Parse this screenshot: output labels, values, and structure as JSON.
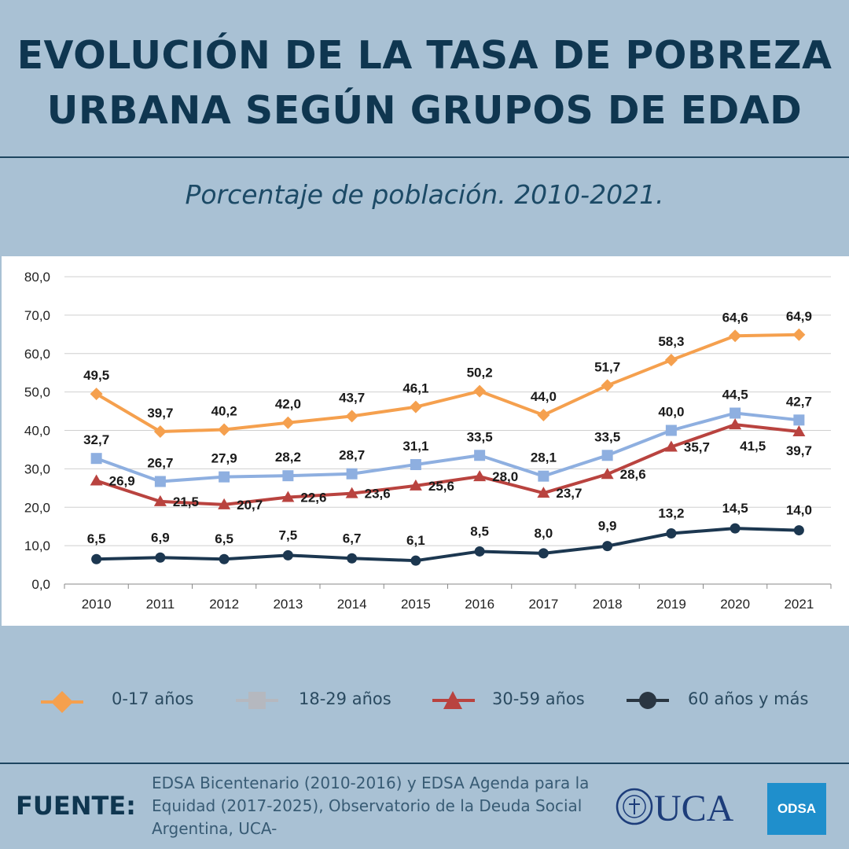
{
  "header": {
    "title_line1": "EVOLUCIÓN DE LA TASA DE POBREZA",
    "title_line2": "URBANA SEGÚN GRUPOS DE EDAD",
    "subtitle": "Porcentaje de población. 2010-2021."
  },
  "chart_data": {
    "type": "line",
    "x": [
      "2010",
      "2011",
      "2012",
      "2013",
      "2014",
      "2015",
      "2016",
      "2017",
      "2018",
      "2019",
      "2020",
      "2021"
    ],
    "ylim": [
      0,
      80
    ],
    "yticks": [
      "0,0",
      "10,0",
      "20,0",
      "30,0",
      "40,0",
      "50,0",
      "60,0",
      "70,0",
      "80,0"
    ],
    "grid": true,
    "legend_position": "bottom",
    "series": [
      {
        "name": "0-17 años",
        "color": "#f5a04e",
        "marker": "diamond",
        "values": [
          49.5,
          39.7,
          40.2,
          42.0,
          43.7,
          46.1,
          50.2,
          44.0,
          51.7,
          58.3,
          64.6,
          64.9
        ],
        "labels": [
          "49,5",
          "39,7",
          "40,2",
          "42,0",
          "43,7",
          "46,1",
          "50,2",
          "44,0",
          "51,7",
          "58,3",
          "64,6",
          "64,9"
        ]
      },
      {
        "name": "18-29  años",
        "color": "#8eafe0",
        "marker": "square",
        "values": [
          32.7,
          26.7,
          27.9,
          28.2,
          28.7,
          31.1,
          33.5,
          28.1,
          33.5,
          40.0,
          44.5,
          42.7
        ],
        "labels": [
          "32,7",
          "26,7",
          "27,9",
          "28,2",
          "28,7",
          "31,1",
          "33,5",
          "28,1",
          "33,5",
          "40,0",
          "44,5",
          "42,7"
        ]
      },
      {
        "name": "30-59  años",
        "color": "#b9433f",
        "marker": "triangle",
        "values": [
          26.9,
          21.5,
          20.7,
          22.6,
          23.6,
          25.6,
          28.0,
          23.7,
          28.6,
          35.7,
          41.5,
          39.7
        ],
        "labels": [
          "26,9",
          "21,5",
          "20,7",
          "22,6",
          "23,6",
          "25,6",
          "28,0",
          "23,7",
          "28,6",
          "35,7",
          "41,5",
          "39,7"
        ]
      },
      {
        "name": "60 años y más",
        "color": "#1c3750",
        "marker": "circle",
        "values": [
          6.5,
          6.9,
          6.5,
          7.5,
          6.7,
          6.1,
          8.5,
          8.0,
          9.9,
          13.2,
          14.5,
          14.0
        ],
        "labels": [
          "6,5",
          "6,9",
          "6,5",
          "7,5",
          "6,7",
          "6,1",
          "8,5",
          "8,0",
          "9,9",
          "13,2",
          "14,5",
          "14,0"
        ]
      }
    ]
  },
  "legend": {
    "items": [
      {
        "label": "0-17 años",
        "color": "#f5a04e",
        "marker": "diamond"
      },
      {
        "label": "18-29  años",
        "color": "#b5b8bf",
        "marker": "square"
      },
      {
        "label": "30-59  años",
        "color": "#b9433f",
        "marker": "triangle"
      },
      {
        "label": "60 años y más",
        "color": "#2a3642",
        "marker": "circle"
      }
    ]
  },
  "footer": {
    "fuente_label": "FUENTE:",
    "source_line1": "EDSA Bicentenario (2010-2016) y EDSA Agenda para la",
    "source_line2": "Equidad (2017-2025), Observatorio de la Deuda Social",
    "source_line3": "Argentina, UCA-",
    "uca_logo_text": "UCA",
    "odsa_logo_text": "ODSA"
  }
}
